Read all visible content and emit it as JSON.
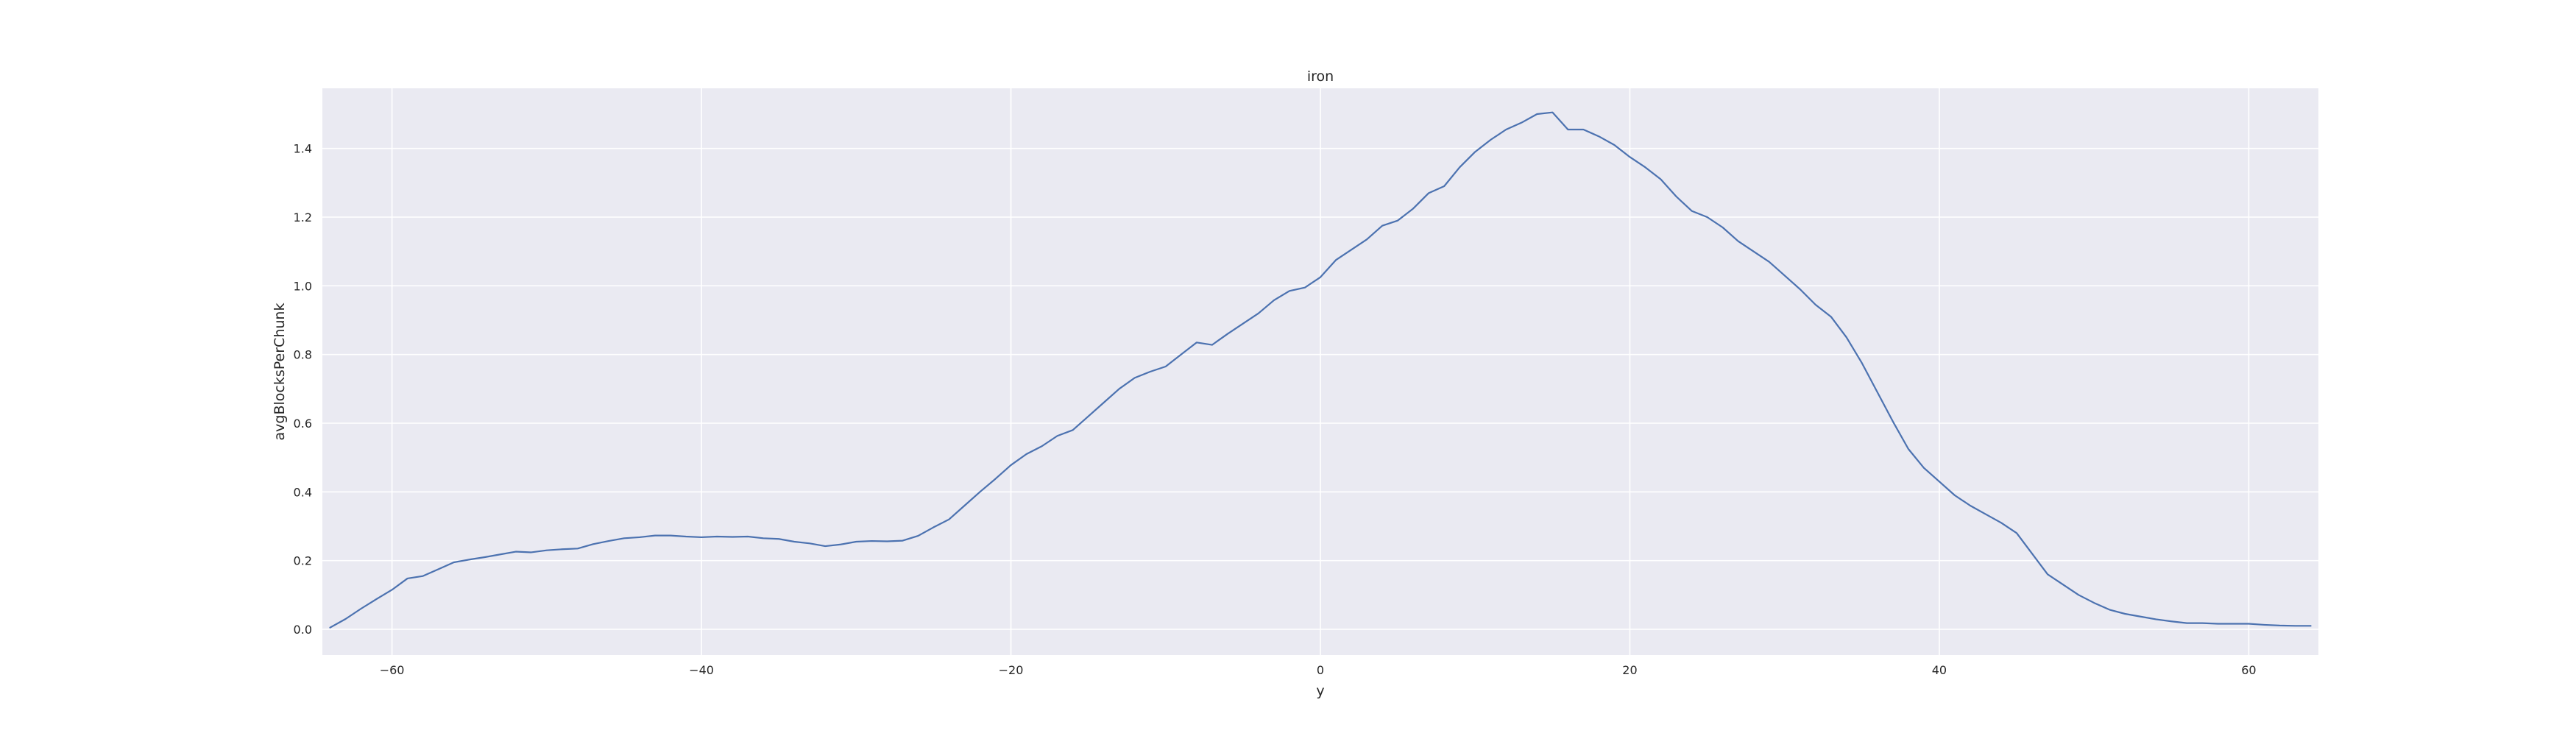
{
  "chart_data": {
    "type": "line",
    "title": "iron",
    "xlabel": "y",
    "ylabel": "avgBlocksPerChunk",
    "xlim": [
      -64.5,
      64.5
    ],
    "ylim": [
      -0.075,
      1.575
    ],
    "xticks": [
      -60,
      -40,
      -20,
      0,
      20,
      40,
      60
    ],
    "xtick_labels": [
      "−60",
      "−40",
      "−20",
      "0",
      "20",
      "40",
      "60"
    ],
    "yticks": [
      0.0,
      0.2,
      0.4,
      0.6,
      0.8,
      1.0,
      1.2,
      1.4
    ],
    "ytick_labels": [
      "0.0",
      "0.2",
      "0.4",
      "0.6",
      "0.8",
      "1.0",
      "1.2",
      "1.4"
    ],
    "grid": true,
    "colors": {
      "background": "#eaeaf2",
      "grid": "#ffffff",
      "line": "#4c72b0",
      "text": "#262626"
    },
    "series": [
      {
        "x": [
          -64,
          -63,
          -62,
          -61,
          -60,
          -59,
          -58,
          -57,
          -56,
          -55,
          -54,
          -53,
          -52,
          -51,
          -50,
          -49,
          -48,
          -47,
          -46,
          -45,
          -44,
          -43,
          -42,
          -41,
          -40,
          -39,
          -38,
          -37,
          -36,
          -35,
          -34,
          -33,
          -32,
          -31,
          -30,
          -29,
          -28,
          -27,
          -26,
          -25,
          -24,
          -23,
          -22,
          -21,
          -20,
          -19,
          -18,
          -17,
          -16,
          -15,
          -14,
          -13,
          -12,
          -11,
          -10,
          -9,
          -8,
          -7,
          -6,
          -5,
          -4,
          -3,
          -2,
          -1,
          0,
          1,
          2,
          3,
          4,
          5,
          6,
          7,
          8,
          9,
          10,
          11,
          12,
          13,
          14,
          15,
          16,
          17,
          18,
          19,
          20,
          21,
          22,
          23,
          24,
          25,
          26,
          27,
          28,
          29,
          30,
          31,
          32,
          33,
          34,
          35,
          36,
          37,
          38,
          39,
          40,
          41,
          42,
          43,
          44,
          45,
          46,
          47,
          48,
          49,
          50,
          51,
          52,
          53,
          54,
          55,
          56,
          57,
          58,
          59,
          60,
          61,
          62,
          63,
          64
        ],
        "y": [
          0.005,
          0.03,
          0.06,
          0.088,
          0.115,
          0.148,
          0.155,
          0.175,
          0.195,
          0.203,
          0.21,
          0.218,
          0.226,
          0.224,
          0.23,
          0.233,
          0.235,
          0.248,
          0.257,
          0.265,
          0.268,
          0.273,
          0.273,
          0.27,
          0.268,
          0.27,
          0.269,
          0.27,
          0.265,
          0.263,
          0.255,
          0.25,
          0.242,
          0.247,
          0.255,
          0.257,
          0.256,
          0.258,
          0.272,
          0.297,
          0.32,
          0.36,
          0.4,
          0.438,
          0.478,
          0.51,
          0.533,
          0.563,
          0.58,
          0.62,
          0.66,
          0.7,
          0.732,
          0.75,
          0.765,
          0.8,
          0.835,
          0.828,
          0.86,
          0.89,
          0.92,
          0.958,
          0.985,
          0.995,
          1.025,
          1.075,
          1.105,
          1.135,
          1.175,
          1.19,
          1.225,
          1.27,
          1.29,
          1.345,
          1.39,
          1.425,
          1.455,
          1.475,
          1.5,
          1.505,
          1.455,
          1.455,
          1.435,
          1.41,
          1.375,
          1.345,
          1.31,
          1.26,
          1.218,
          1.2,
          1.17,
          1.13,
          1.1,
          1.07,
          1.03,
          0.99,
          0.945,
          0.91,
          0.85,
          0.775,
          0.69,
          0.605,
          0.525,
          0.47,
          0.43,
          0.39,
          0.36,
          0.335,
          0.31,
          0.28,
          0.22,
          0.16,
          0.13,
          0.1,
          0.077,
          0.057,
          0.045,
          0.037,
          0.029,
          0.023,
          0.018,
          0.018,
          0.016,
          0.016,
          0.016,
          0.013,
          0.011,
          0.01,
          0.01
        ]
      }
    ]
  }
}
